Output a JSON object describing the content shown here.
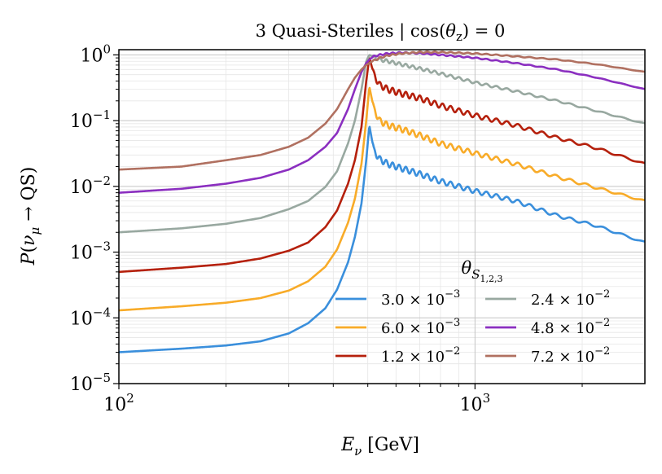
{
  "chart_data": {
    "type": "line",
    "title": "3 Quasi-Steriles | cos(θz) = 0",
    "xlabel": "Eν [GeV]",
    "ylabel": "P(νμ → QS)",
    "xscale": "log",
    "yscale": "log",
    "xlim": [
      100,
      3000
    ],
    "ylim": [
      1e-05,
      1.2
    ],
    "grid": true,
    "x_ticks": [
      {
        "value": 100,
        "base": "10",
        "exp": "2"
      },
      {
        "value": 1000,
        "base": "10",
        "exp": "3"
      }
    ],
    "y_ticks": [
      {
        "value": 1e-05,
        "base": "10",
        "exp": "−5"
      },
      {
        "value": 0.0001,
        "base": "10",
        "exp": "−4"
      },
      {
        "value": 0.001,
        "base": "10",
        "exp": "−3"
      },
      {
        "value": 0.01,
        "base": "10",
        "exp": "−2"
      },
      {
        "value": 0.1,
        "base": "10",
        "exp": "−1"
      },
      {
        "value": 1,
        "base": "10",
        "exp": "0"
      }
    ],
    "legend": {
      "title": "θS1,2,3",
      "title_main": "θ",
      "title_sub": "S",
      "title_subsub": "1,2,3",
      "placement": "lower-right",
      "columns": 2
    },
    "series": [
      {
        "name": "3.0 × 10−3",
        "mant": "3.0 × 10",
        "exp": "−3",
        "color": "#3a8fdc",
        "x": [
          100,
          150,
          200,
          250,
          300,
          340,
          380,
          410,
          440,
          460,
          480,
          495,
          505,
          520,
          540,
          570,
          620,
          700,
          800,
          1000,
          1300,
          1700,
          2200,
          3000
        ],
        "y": [
          3e-05,
          3.4e-05,
          3.8e-05,
          4.4e-05,
          5.8e-05,
          8.3e-05,
          0.00014,
          0.00027,
          0.0007,
          0.0017,
          0.0055,
          0.025,
          0.085,
          0.035,
          0.026,
          0.022,
          0.019,
          0.0155,
          0.012,
          0.0085,
          0.006,
          0.0036,
          0.0025,
          0.0014
        ]
      },
      {
        "name": "6.0 × 10−3",
        "mant": "6.0 × 10",
        "exp": "−3",
        "color": "#f8ab28",
        "x": [
          100,
          150,
          200,
          250,
          300,
          340,
          380,
          410,
          440,
          460,
          480,
          495,
          505,
          520,
          540,
          570,
          620,
          700,
          800,
          1000,
          1300,
          1700,
          2200,
          3000
        ],
        "y": [
          0.00013,
          0.00015,
          0.00017,
          0.0002,
          0.00026,
          0.00036,
          0.0006,
          0.0011,
          0.0028,
          0.0065,
          0.022,
          0.1,
          0.33,
          0.15,
          0.1,
          0.085,
          0.075,
          0.06,
          0.045,
          0.032,
          0.022,
          0.014,
          0.0095,
          0.006
        ]
      },
      {
        "name": "1.2 × 10−2",
        "mant": "1.2 × 10",
        "exp": "−2",
        "color": "#b5200c",
        "x": [
          100,
          150,
          200,
          250,
          300,
          340,
          380,
          410,
          440,
          460,
          480,
          495,
          505,
          520,
          540,
          570,
          620,
          700,
          800,
          1000,
          1300,
          1700,
          2200,
          3000
        ],
        "y": [
          0.0005,
          0.00058,
          0.00066,
          0.0008,
          0.00105,
          0.0014,
          0.0024,
          0.0043,
          0.011,
          0.025,
          0.08,
          0.4,
          0.92,
          0.5,
          0.35,
          0.3,
          0.26,
          0.22,
          0.17,
          0.12,
          0.085,
          0.055,
          0.038,
          0.022
        ]
      },
      {
        "name": "2.4 × 10−2",
        "mant": "2.4 × 10",
        "exp": "−2",
        "color": "#98a8a0",
        "x": [
          100,
          150,
          200,
          250,
          300,
          340,
          380,
          410,
          440,
          460,
          480,
          495,
          505,
          520,
          540,
          570,
          620,
          700,
          800,
          1000,
          1300,
          1700,
          2200,
          3000
        ],
        "y": [
          0.002,
          0.0023,
          0.0027,
          0.0033,
          0.0045,
          0.006,
          0.0098,
          0.017,
          0.045,
          0.1,
          0.3,
          0.8,
          1.0,
          0.92,
          0.85,
          0.8,
          0.72,
          0.62,
          0.52,
          0.38,
          0.28,
          0.2,
          0.14,
          0.09
        ]
      },
      {
        "name": "4.8 × 10−2",
        "mant": "4.8 × 10",
        "exp": "−2",
        "color": "#8b2fc0",
        "x": [
          100,
          150,
          200,
          250,
          300,
          340,
          380,
          410,
          440,
          460,
          480,
          495,
          505,
          520,
          540,
          570,
          620,
          700,
          800,
          1000,
          1300,
          1700,
          2200,
          3000
        ],
        "y": [
          0.008,
          0.0092,
          0.011,
          0.0135,
          0.018,
          0.025,
          0.04,
          0.065,
          0.15,
          0.3,
          0.55,
          0.75,
          0.85,
          0.95,
          1.0,
          1.05,
          1.08,
          1.06,
          1.0,
          0.9,
          0.75,
          0.6,
          0.45,
          0.3
        ]
      },
      {
        "name": "7.2 × 10−2",
        "mant": "7.2 × 10",
        "exp": "−2",
        "color": "#b07060",
        "x": [
          100,
          150,
          200,
          250,
          300,
          340,
          380,
          410,
          440,
          460,
          480,
          495,
          505,
          520,
          540,
          570,
          620,
          700,
          800,
          1000,
          1300,
          1700,
          2200,
          3000
        ],
        "y": [
          0.018,
          0.02,
          0.025,
          0.03,
          0.04,
          0.055,
          0.09,
          0.15,
          0.3,
          0.45,
          0.6,
          0.7,
          0.75,
          0.82,
          0.9,
          0.98,
          1.05,
          1.1,
          1.1,
          1.05,
          0.95,
          0.85,
          0.72,
          0.55
        ]
      }
    ]
  }
}
